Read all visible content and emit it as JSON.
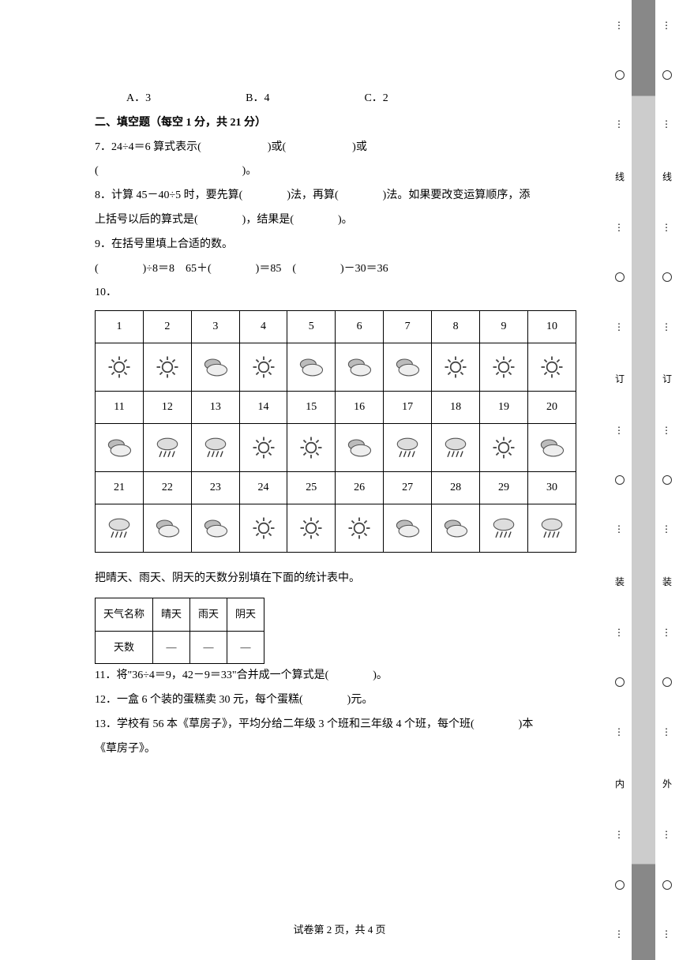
{
  "choices": {
    "a": "A．3",
    "b": "B．4",
    "c": "C．2"
  },
  "section2_title": "二、填空题（每空 1 分，共 21 分）",
  "q7": "7．24÷4＝6 算式表示(　　　　　　)或(　　　　　　)或",
  "q7b": "(　　　　　　　　　　　　　)。",
  "q8a": "8．计算 45－40÷5 时，要先算(　　　　)法，再算(　　　　)法。如果要改变运算顺序，添",
  "q8b": "上括号以后的算式是(　　　　)，结果是(　　　　)。",
  "q9a": "9．在括号里填上合适的数。",
  "q9b": "(　　　　)÷8＝8　65＋(　　　　)＝85　(　　　　)－30＝36",
  "q10_label": "10．",
  "q10_caption": "把晴天、雨天、阴天的天数分别填在下面的统计表中。",
  "summary": {
    "h1": "天气名称",
    "h2": "晴天",
    "h3": "雨天",
    "h4": "阴天",
    "r1": "天数",
    "blank": "—"
  },
  "q11": "11．将\"36÷4＝9，42－9＝33\"合并成一个算式是(　　　　)。",
  "q12": "12．一盒 6 个装的蛋糕卖 30 元，每个蛋糕(　　　　)元。",
  "q13a": "13．学校有 56 本《草房子》，平均分给二年级 3 个班和三年级 4 个班，每个班(　　　　)本",
  "q13b": "《草房子》。",
  "footer": "试卷第 2 页，共 4 页",
  "margin": {
    "xian": "线",
    "ding": "订",
    "zhuang": "装",
    "nei": "内",
    "wai": "外"
  },
  "weather": {
    "days": [
      [
        "1",
        "2",
        "3",
        "4",
        "5",
        "6",
        "7",
        "8",
        "9",
        "10"
      ],
      [
        "sun",
        "sun",
        "cloud",
        "sun",
        "cloud",
        "cloud",
        "cloud",
        "sun",
        "sun",
        "sun"
      ],
      [
        "11",
        "12",
        "13",
        "14",
        "15",
        "16",
        "17",
        "18",
        "19",
        "20"
      ],
      [
        "cloud",
        "rain",
        "rain",
        "sun",
        "sun",
        "cloud",
        "rain",
        "rain",
        "sun",
        "cloud"
      ],
      [
        "21",
        "22",
        "23",
        "24",
        "25",
        "26",
        "27",
        "28",
        "29",
        "30"
      ],
      [
        "rain",
        "cloud",
        "cloud",
        "sun",
        "sun",
        "sun",
        "cloud",
        "cloud",
        "rain",
        "rain"
      ]
    ],
    "icon_colors": {
      "sun": "#555",
      "cloud": "#999",
      "rain": "#555"
    }
  }
}
